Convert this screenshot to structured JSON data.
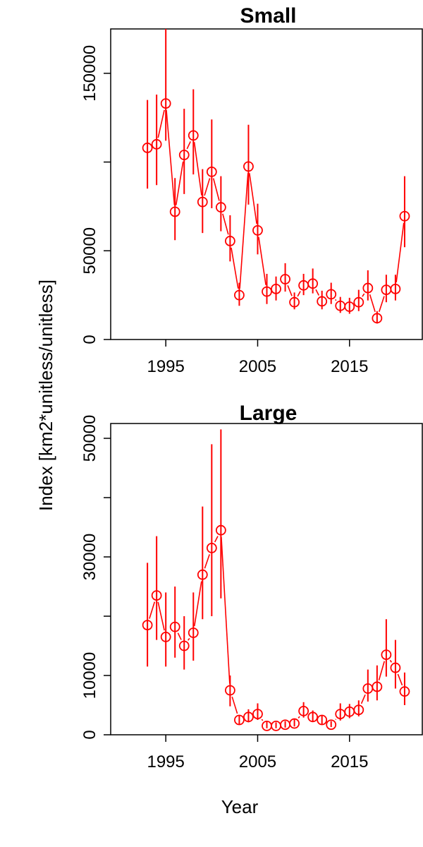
{
  "chart_data": [
    {
      "type": "line",
      "title": "Small",
      "xlabel": "Year",
      "ylabel": "Index [km2*unitless/unitless]",
      "xlim": [
        1989,
        2023
      ],
      "ylim": [
        0,
        175000
      ],
      "x_ticks": [
        1995,
        2005,
        2015
      ],
      "y_ticks": [
        0,
        50000,
        100000,
        150000
      ],
      "y_tick_labels": [
        "0",
        "50000",
        "",
        "150000"
      ],
      "grid": false,
      "color": "#ff0000",
      "series": [
        {
          "x": [
            1993,
            1994,
            1995,
            1996,
            1997,
            1998,
            1999,
            2000,
            2001,
            2002,
            2003,
            2004,
            2005,
            2006,
            2007,
            2008,
            2009,
            2010,
            2011,
            2012,
            2013,
            2014,
            2015,
            2016,
            2017,
            2018,
            2019,
            2020,
            2021
          ],
          "y": [
            108000,
            110000,
            133000,
            72000,
            104000,
            115000,
            77500,
            94500,
            74500,
            55500,
            25000,
            97500,
            61500,
            27000,
            28500,
            34000,
            21000,
            30500,
            31500,
            21500,
            25500,
            19000,
            18500,
            21000,
            29000,
            12000,
            28000,
            28500,
            69500
          ],
          "lower": [
            85000,
            87000,
            112000,
            56000,
            82000,
            93000,
            60000,
            74000,
            61000,
            44000,
            19000,
            76000,
            48000,
            20000,
            22000,
            27000,
            17000,
            25000,
            26000,
            17000,
            20000,
            15000,
            14500,
            16000,
            22000,
            9000,
            21000,
            22000,
            52000
          ],
          "upper": [
            135000,
            138000,
            175000,
            91000,
            130000,
            141000,
            96000,
            124000,
            92000,
            70000,
            32000,
            121000,
            76500,
            37000,
            35500,
            43000,
            26500,
            37000,
            40000,
            27500,
            32000,
            24000,
            23500,
            28000,
            39000,
            16000,
            36500,
            36500,
            92000
          ]
        }
      ]
    },
    {
      "type": "line",
      "title": "Large",
      "xlabel": "Year",
      "ylabel": "Index [km2*unitless/unitless]",
      "xlim": [
        1989,
        2023
      ],
      "ylim": [
        0,
        52500
      ],
      "x_ticks": [
        1995,
        2005,
        2015
      ],
      "y_ticks": [
        0,
        10000,
        20000,
        30000,
        40000,
        50000
      ],
      "y_tick_labels": [
        "0",
        "10000",
        "",
        "30000",
        "",
        "50000"
      ],
      "grid": false,
      "color": "#ff0000",
      "series": [
        {
          "x": [
            1993,
            1994,
            1995,
            1996,
            1997,
            1998,
            1999,
            2000,
            2001,
            2002,
            2003,
            2004,
            2005,
            2006,
            2007,
            2008,
            2009,
            2010,
            2011,
            2012,
            2013,
            2014,
            2015,
            2016,
            2017,
            2018,
            2019,
            2020,
            2021
          ],
          "y": [
            18500,
            23500,
            16500,
            18200,
            15000,
            17200,
            27000,
            31500,
            34500,
            7500,
            2500,
            3000,
            3500,
            1500,
            1500,
            1700,
            1900,
            4000,
            3000,
            2500,
            1700,
            3500,
            3900,
            4200,
            7800,
            8100,
            13500,
            11300,
            7300
          ],
          "lower": [
            11500,
            16000,
            11500,
            13000,
            11000,
            12500,
            19500,
            20000,
            23000,
            4800,
            1800,
            2100,
            2500,
            1100,
            1100,
            1200,
            1400,
            2900,
            2200,
            1800,
            1300,
            2400,
            2800,
            3100,
            5600,
            5800,
            9800,
            7800,
            5000
          ],
          "upper": [
            29000,
            33500,
            24000,
            25000,
            20000,
            24000,
            38500,
            49000,
            51500,
            10000,
            3200,
            4300,
            5300,
            2200,
            2100,
            2300,
            2600,
            5500,
            4100,
            3300,
            2300,
            5300,
            5200,
            5800,
            11000,
            11700,
            19500,
            16000,
            10500
          ]
        }
      ]
    }
  ]
}
